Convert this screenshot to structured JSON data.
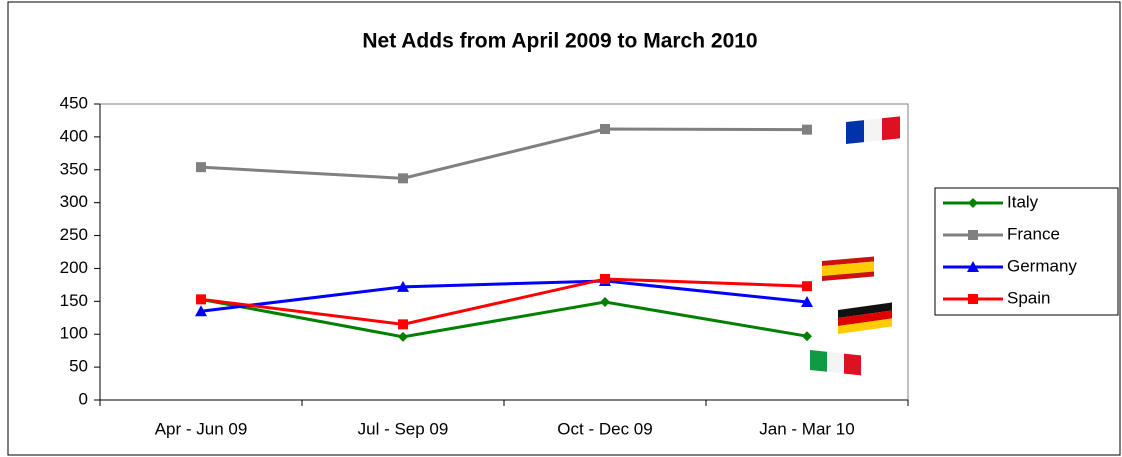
{
  "chart_data": {
    "type": "line",
    "title": "Net Adds from April 2009 to March 2010",
    "categories": [
      "Apr - Jun 09",
      "Jul - Sep 09",
      "Oct - Dec 09",
      "Jan - Mar 10"
    ],
    "series": [
      {
        "name": "Italy",
        "color": "#008000",
        "marker": "diamond",
        "values": [
          153,
          96,
          149,
          97
        ]
      },
      {
        "name": "France",
        "color": "#808080",
        "marker": "square",
        "values": [
          354,
          337,
          412,
          411
        ]
      },
      {
        "name": "Germany",
        "color": "#0000ff",
        "marker": "triangle",
        "values": [
          135,
          172,
          181,
          149
        ]
      },
      {
        "name": "Spain",
        "color": "#ff0000",
        "marker": "square",
        "values": [
          153,
          115,
          184,
          173
        ]
      }
    ],
    "ylim": [
      0,
      450
    ],
    "yticks": [
      0,
      50,
      100,
      150,
      200,
      250,
      300,
      350,
      400,
      450
    ],
    "grid": false,
    "legend": "right"
  }
}
